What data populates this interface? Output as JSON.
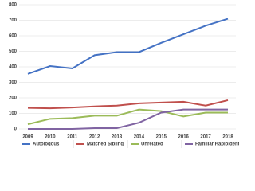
{
  "chart_data": {
    "type": "line",
    "categories": [
      "2009",
      "2010",
      "2011",
      "2012",
      "2013",
      "2014",
      "2015",
      "2016",
      "2017",
      "2018"
    ],
    "series": [
      {
        "name": "Autologous",
        "color": "#4472c4",
        "values": [
          355,
          405,
          390,
          475,
          495,
          495,
          555,
          610,
          665,
          710
        ]
      },
      {
        "name": "Matched Sibling",
        "color": "#c0504d",
        "values": [
          135,
          133,
          138,
          145,
          150,
          165,
          170,
          175,
          150,
          185
        ]
      },
      {
        "name": "Unrelated",
        "color": "#9bbb59",
        "values": [
          30,
          65,
          70,
          85,
          85,
          125,
          115,
          80,
          105,
          105
        ]
      },
      {
        "name": "Familiar Haploidentical",
        "color": "#8064a2",
        "values": [
          0,
          0,
          0,
          5,
          5,
          40,
          105,
          125,
          125,
          125
        ]
      }
    ],
    "ylim": [
      0,
      800
    ],
    "yticks": [
      0,
      100,
      200,
      300,
      400,
      500,
      600,
      700,
      800
    ],
    "grid": true,
    "legend": "bottom"
  }
}
